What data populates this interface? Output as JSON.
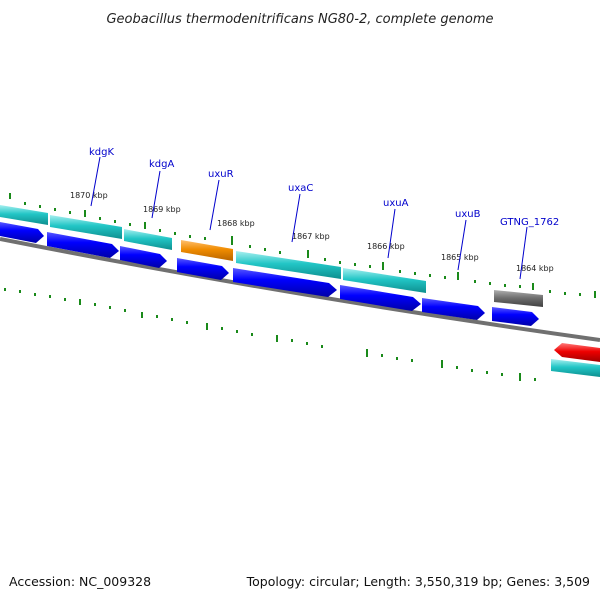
{
  "title": "Geobacillus thermodenitrificans NG80-2, complete genome",
  "accession": "Accession: NC_009328",
  "topology": "Topology: circular; Length: 3,550,319 bp; Genes: 3,509",
  "colors": {
    "gene_label": "#0000cc",
    "backbone": "#808080",
    "tick": "#1a8a1a",
    "cds_blue": "#0000ff",
    "feature_cyan": "#22c6c6",
    "feature_orange": "#f08c00",
    "feature_gray": "#707070",
    "feature_red": "#ee0000"
  },
  "kbp_markers": [
    {
      "label": "1870 kbp"
    },
    {
      "label": "1869 kbp"
    },
    {
      "label": "1868 kbp"
    },
    {
      "label": "1867 kbp"
    },
    {
      "label": "1866 kbp"
    },
    {
      "label": "1865 kbp"
    },
    {
      "label": "1864 kbp"
    }
  ],
  "genes": [
    {
      "name": "kdgK"
    },
    {
      "name": "kdgA"
    },
    {
      "name": "uxuR"
    },
    {
      "name": "uxaC"
    },
    {
      "name": "uxuA"
    },
    {
      "name": "uxuB"
    },
    {
      "name": "GTNG_1762"
    }
  ]
}
